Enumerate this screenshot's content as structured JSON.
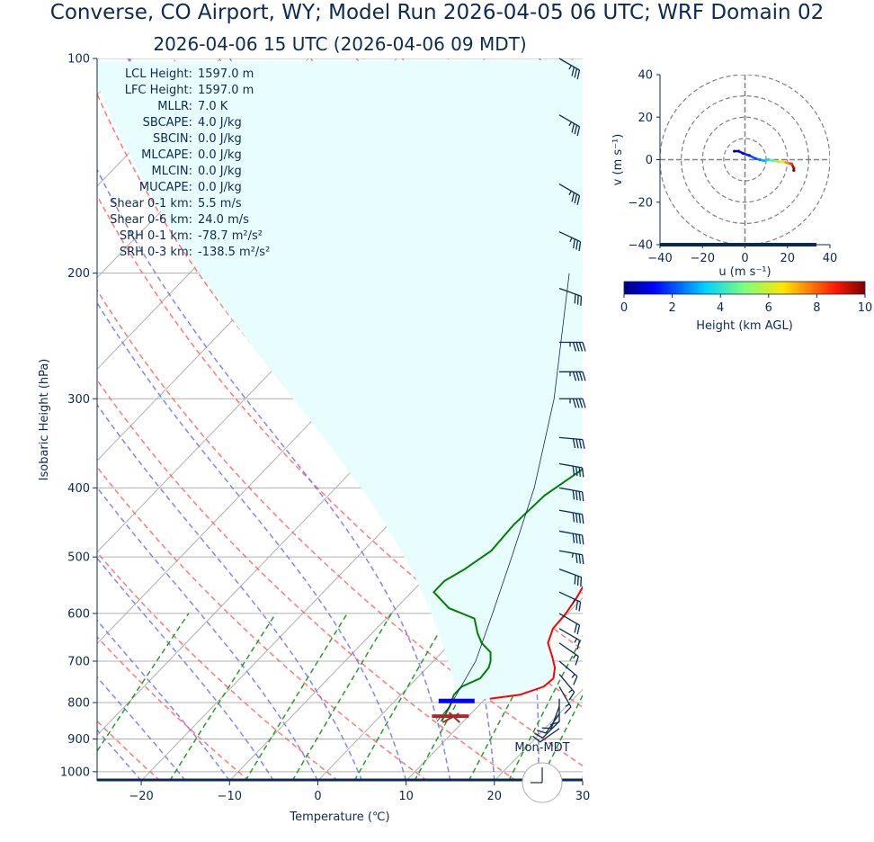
{
  "title_line1": "Converse, CO Airport, WY; Model Run 2026-04-05 06 UTC; WRF Domain 02",
  "title_line2": "2026-04-06 15 UTC  (2026-04-06 09 MDT)",
  "chart_data": [
    {
      "type": "line",
      "name": "skew-t",
      "xlabel": "Temperature (℃)",
      "ylabel": "Isobaric Height (hPa)",
      "xlim": [
        -25,
        30
      ],
      "ylim": [
        1030,
        100
      ],
      "x_ticks": [
        -20,
        -10,
        0,
        10,
        20,
        30
      ],
      "y_ticks": [
        100,
        200,
        300,
        400,
        500,
        600,
        700,
        800,
        900,
        1000
      ],
      "y_scale": "log",
      "grid": true,
      "series": [
        {
          "color": "#ff0000",
          "points": [
            [
              10.5,
              790
            ],
            [
              13.5,
              780
            ],
            [
              15.3,
              760
            ],
            [
              15.5,
              740
            ],
            [
              14.5,
              715
            ],
            [
              13,
              690
            ],
            [
              11,
              660
            ],
            [
              10,
              630
            ],
            [
              9.8,
              600
            ],
            [
              9.3,
              570
            ],
            [
              8.3,
              530
            ],
            [
              7,
              490
            ],
            [
              5.5,
              450
            ],
            [
              3.8,
              415
            ],
            [
              2,
              380
            ],
            [
              -0.8,
              340
            ],
            [
              -3.2,
              300
            ],
            [
              -5.5,
              265
            ],
            [
              -6.5,
              240
            ],
            [
              -7.8,
              220
            ],
            [
              -6.3,
              200
            ],
            [
              -5,
              185
            ],
            [
              3,
              155
            ],
            [
              12,
              130
            ],
            [
              18.5,
              112
            ],
            [
              24,
              100
            ]
          ]
        },
        {
          "color": "#008000",
          "points": [
            [
              7.5,
              850
            ],
            [
              6.8,
              810
            ],
            [
              6,
              780
            ],
            [
              6,
              760
            ],
            [
              7.2,
              740
            ],
            [
              7,
              715
            ],
            [
              6.5,
              700
            ],
            [
              5.5,
              680
            ],
            [
              3.5,
              660
            ],
            [
              2,
              640
            ],
            [
              0,
              610
            ],
            [
              -4,
              590
            ],
            [
              -7.5,
              560
            ],
            [
              -7.5,
              540
            ],
            [
              -6.5,
              520
            ],
            [
              -5.5,
              490
            ],
            [
              -5.8,
              450
            ],
            [
              -5.5,
              410
            ],
            [
              -4,
              375
            ],
            [
              -3.8,
              350
            ],
            [
              -6.5,
              310
            ],
            [
              -8.5,
              280
            ],
            [
              -10.5,
              250
            ],
            [
              -12,
              220
            ],
            [
              -10.5,
              190
            ],
            [
              -11,
              170
            ],
            [
              -10,
              150
            ],
            [
              -7,
              130
            ],
            [
              1.5,
              100
            ]
          ]
        },
        {
          "color": "#0d2a52",
          "name": "parcel",
          "points": [
            [
              7,
              850
            ],
            [
              6.8,
              810
            ],
            [
              4.8,
              700
            ],
            [
              1.5,
              600
            ],
            [
              -2.5,
              500
            ],
            [
              -7.5,
              400
            ],
            [
              -15,
              300
            ],
            [
              -27,
              200
            ]
          ]
        }
      ],
      "lcl_pressure": 796,
      "lcl_temperature": 7.2,
      "surface_pressure": 836,
      "surface_temperature": 8,
      "stats": [
        "LCL Height: 1597.0 m",
        "LFC Height: 1597.0 m",
        "MLLR: 7.0 K",
        "SBCAPE: 4.0 J/kg",
        "SBCIN: 0.0 J/kg",
        "MLCAPE: 0.0 J/kg",
        "MLCIN: 0.0 J/kg",
        "MUCAPE: 0.0 J/kg",
        "Shear 0-1 km: 5.5 m/s",
        "Shear 0-6 km: 24.0 m/s",
        "SRH 0-1 km: -78.7 m²/s²",
        "SRH 0-3 km: -138.5 m²/s²"
      ],
      "barbs": [
        [
          100,
          35,
          120
        ],
        [
          120,
          35,
          120
        ],
        [
          150,
          35,
          120
        ],
        [
          175,
          35,
          115
        ],
        [
          210,
          30,
          110
        ],
        [
          250,
          45,
          90
        ],
        [
          275,
          45,
          90
        ],
        [
          300,
          45,
          90
        ],
        [
          340,
          40,
          95
        ],
        [
          370,
          40,
          100
        ],
        [
          400,
          40,
          100
        ],
        [
          430,
          40,
          100
        ],
        [
          460,
          40,
          100
        ],
        [
          490,
          35,
          100
        ],
        [
          520,
          30,
          110
        ],
        [
          560,
          25,
          115
        ],
        [
          600,
          20,
          120
        ],
        [
          630,
          15,
          120
        ],
        [
          660,
          15,
          125
        ],
        [
          700,
          15,
          130
        ],
        [
          730,
          15,
          140
        ],
        [
          760,
          15,
          150
        ],
        [
          790,
          10,
          180
        ],
        [
          810,
          10,
          200
        ],
        [
          830,
          10,
          215
        ],
        [
          850,
          10,
          225
        ],
        [
          870,
          10,
          235
        ]
      ]
    },
    {
      "type": "line",
      "name": "hodograph",
      "xlabel": "u (m s⁻¹)",
      "ylabel": "v (m s⁻¹)",
      "xlim": [
        -40,
        40
      ],
      "ylim": [
        -40,
        40
      ],
      "x_ticks": [
        -40,
        -20,
        0,
        20,
        40
      ],
      "y_ticks": [
        -40,
        -20,
        0,
        20,
        40
      ],
      "rings": [
        10,
        20,
        30,
        40
      ],
      "points": [
        [
          -5,
          4,
          0.1
        ],
        [
          -3,
          4,
          0.5
        ],
        [
          -1,
          3,
          1
        ],
        [
          2,
          2,
          1.5
        ],
        [
          5,
          0.5,
          2
        ],
        [
          7,
          0,
          2.5
        ],
        [
          9,
          -0.5,
          3
        ],
        [
          11,
          0,
          3.5
        ],
        [
          13,
          -0.5,
          4.5
        ],
        [
          16,
          -1,
          5.5
        ],
        [
          18,
          -1,
          6.5
        ],
        [
          20,
          -1.5,
          7.5
        ],
        [
          22,
          -2,
          8.5
        ],
        [
          23,
          -4,
          9.5
        ],
        [
          23,
          -5,
          10
        ]
      ],
      "colorbar": {
        "label": "Height (km AGL)",
        "min": 0,
        "max": 10,
        "ticks": [
          0,
          2,
          4,
          6,
          8,
          10
        ]
      }
    }
  ],
  "clock_label": "Mon-MDT"
}
